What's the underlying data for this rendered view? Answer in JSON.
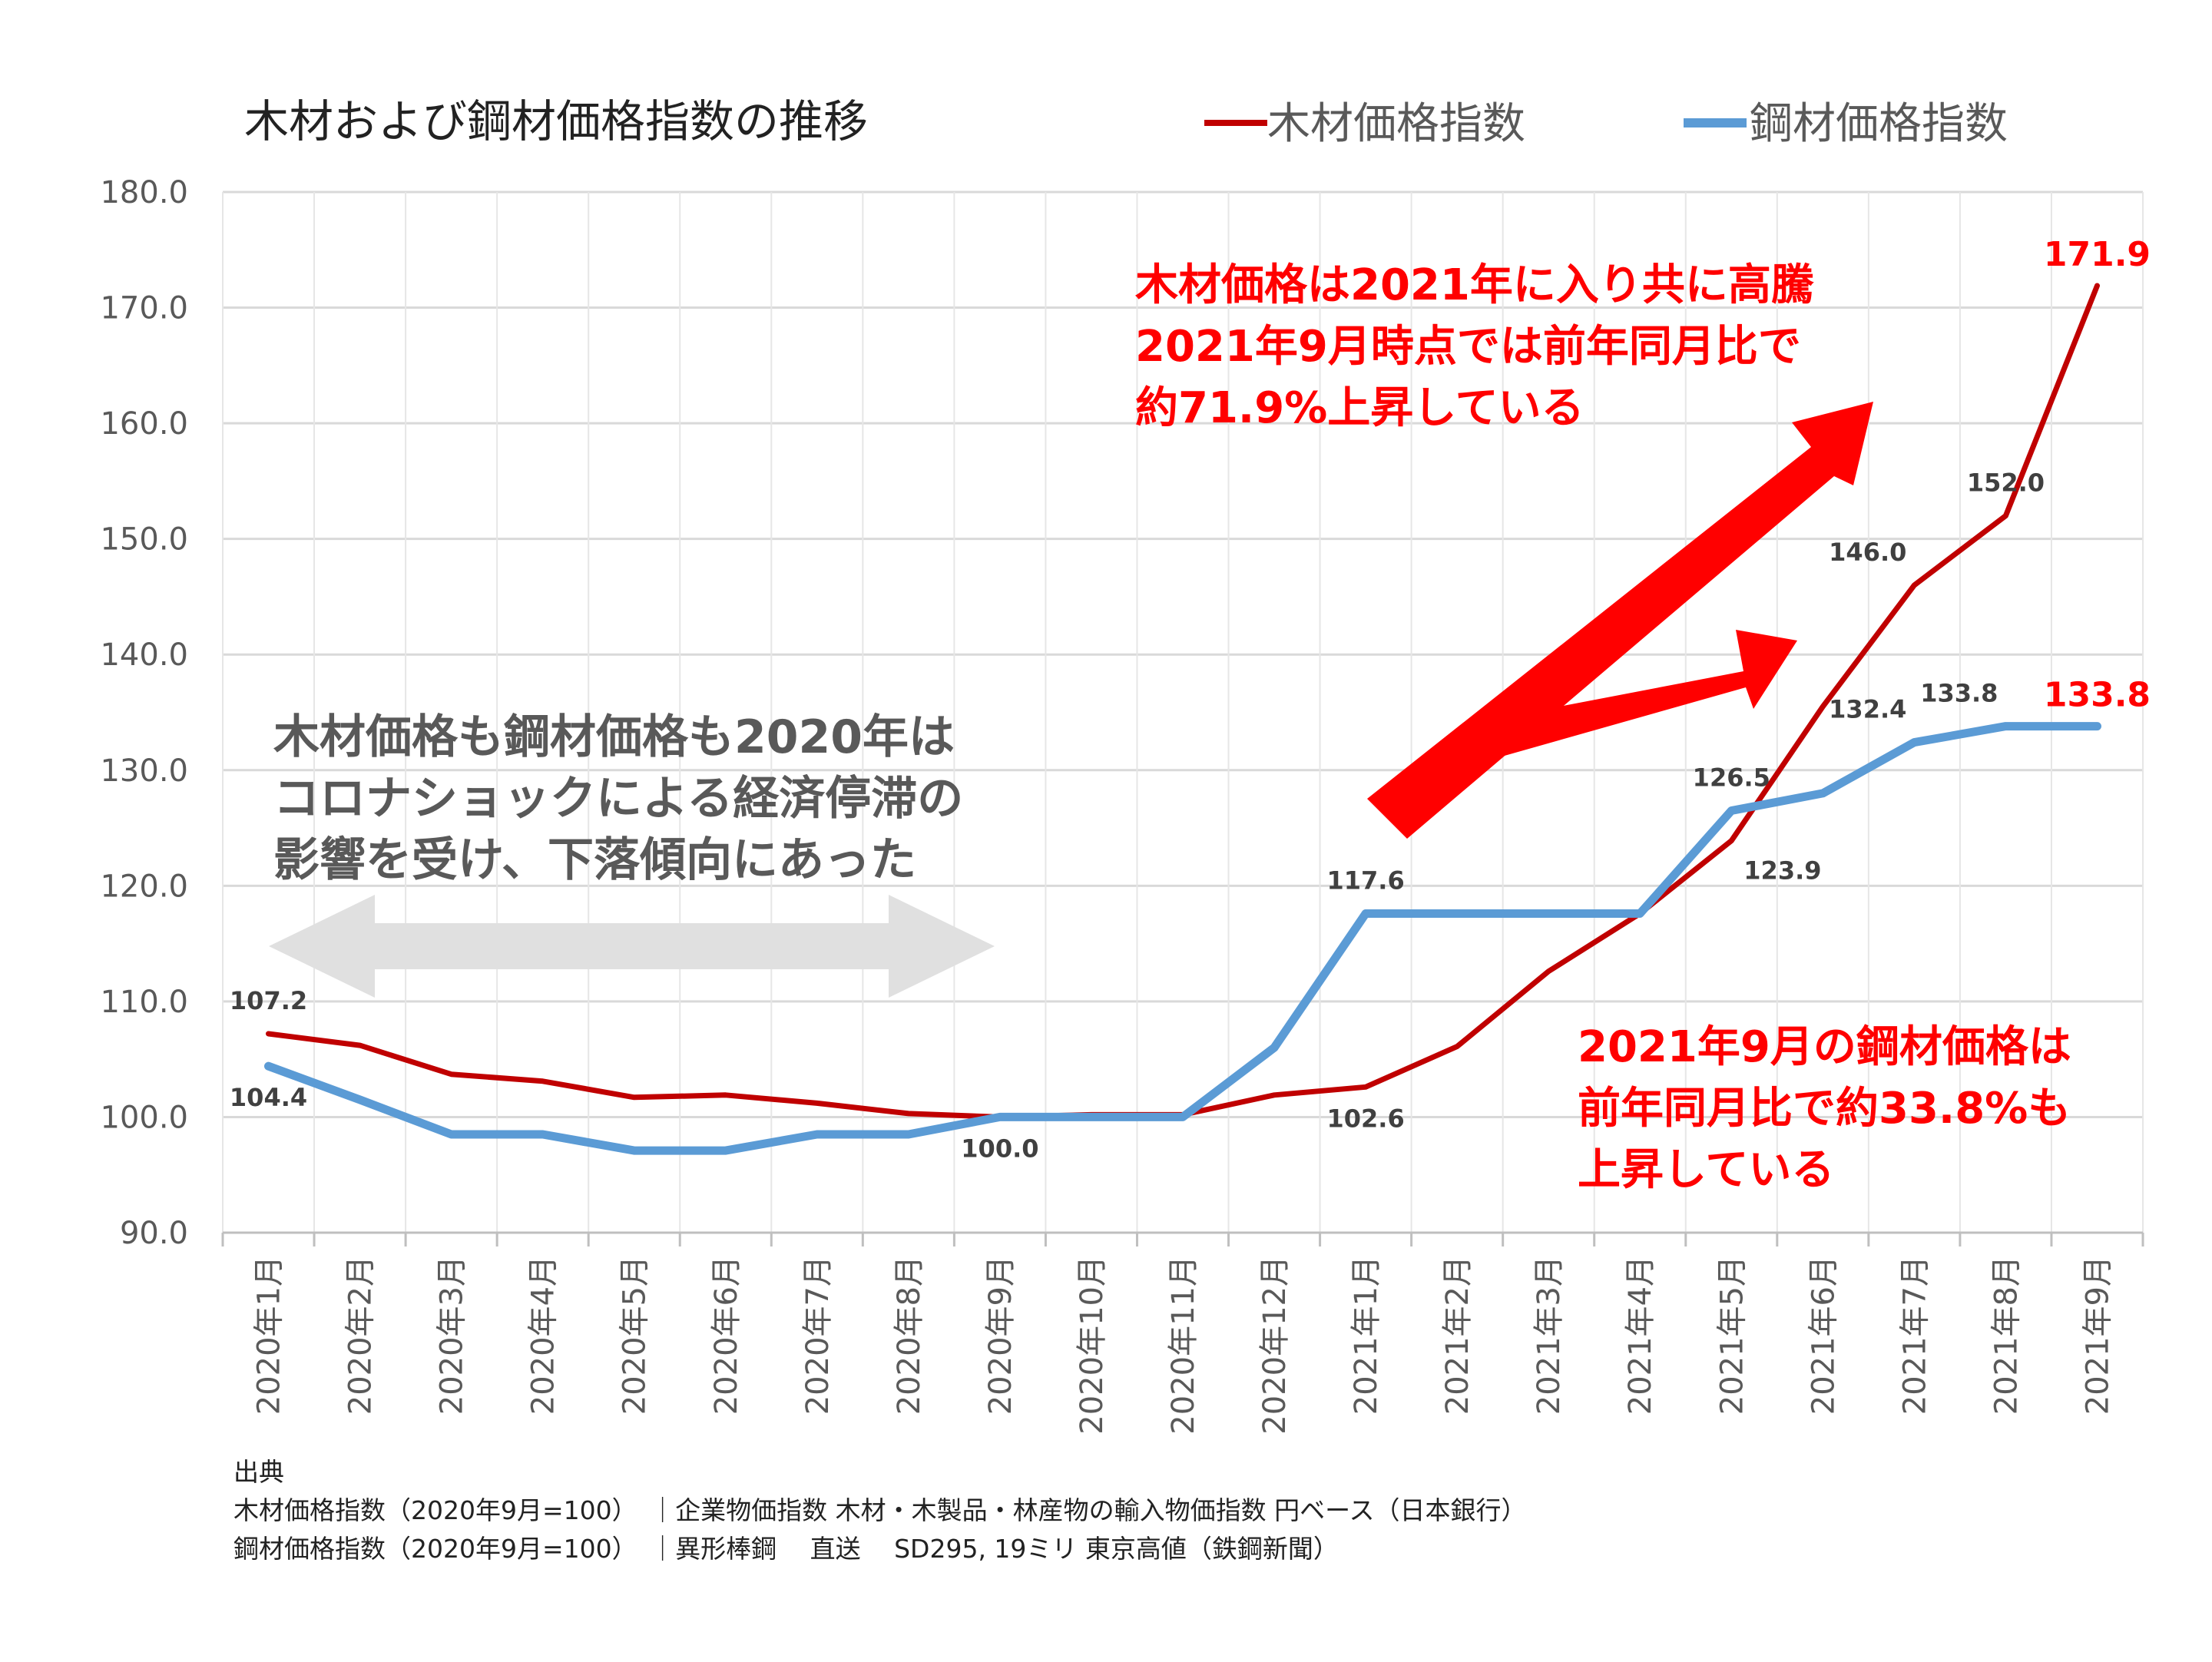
{
  "chart_data": {
    "type": "line",
    "title": "木材および鋼材価格指数の推移",
    "categories": [
      "2020年1月",
      "2020年2月",
      "2020年3月",
      "2020年4月",
      "2020年5月",
      "2020年6月",
      "2020年7月",
      "2020年8月",
      "2020年9月",
      "2020年10月",
      "2020年11月",
      "2020年12月",
      "2021年1月",
      "2021年2月",
      "2021年3月",
      "2021年4月",
      "2021年5月",
      "2021年6月",
      "2021年7月",
      "2021年8月",
      "2021年9月"
    ],
    "ylim": [
      90,
      180
    ],
    "yticks": [
      "90.0",
      "100.0",
      "110.0",
      "120.0",
      "130.0",
      "140.0",
      "150.0",
      "160.0",
      "170.0",
      "180.0"
    ],
    "grid": true,
    "legend_position": "top-right",
    "series": [
      {
        "name": "木材価格指数",
        "color": "#c00000",
        "values": [
          107.2,
          106.2,
          103.7,
          103.1,
          101.7,
          101.9,
          101.2,
          100.3,
          100.0,
          100.2,
          100.2,
          101.9,
          102.6,
          106.1,
          112.6,
          117.6,
          123.9,
          135.5,
          146.0,
          152.0,
          171.9
        ]
      },
      {
        "name": "鋼材価格指数",
        "color": "#5b9bd5",
        "values": [
          104.4,
          101.5,
          98.5,
          98.5,
          97.1,
          97.1,
          98.5,
          98.5,
          100.0,
          100.0,
          100.0,
          106.0,
          117.6,
          117.6,
          117.6,
          117.6,
          126.5,
          128.0,
          132.4,
          133.8,
          133.8
        ]
      }
    ],
    "data_labels": [
      {
        "text": "107.2",
        "series": 0,
        "index": 0,
        "pos": "above"
      },
      {
        "text": "104.4",
        "series": 1,
        "index": 0,
        "pos": "below"
      },
      {
        "text": "100.0",
        "series": 1,
        "index": 8,
        "pos": "below"
      },
      {
        "text": "117.6",
        "series": 1,
        "index": 12,
        "pos": "above"
      },
      {
        "text": "102.6",
        "series": 0,
        "index": 12,
        "pos": "below"
      },
      {
        "text": "123.9",
        "series": 0,
        "index": 16,
        "pos": "below-right"
      },
      {
        "text": "126.5",
        "series": 1,
        "index": 16,
        "pos": "above"
      },
      {
        "text": "146.0",
        "series": 0,
        "index": 18,
        "pos": "above-left"
      },
      {
        "text": "132.4",
        "series": 1,
        "index": 18,
        "pos": "above-left"
      },
      {
        "text": "152.0",
        "series": 0,
        "index": 19,
        "pos": "above"
      },
      {
        "text": "133.8",
        "series": 1,
        "index": 19,
        "pos": "above-left"
      }
    ],
    "highlight_labels": [
      {
        "text": "171.9",
        "series": 0,
        "index": 20
      },
      {
        "text": "133.8",
        "series": 1,
        "index": 20
      }
    ],
    "annotations": {
      "wood_note": [
        "木材価格は2021年に入り共に高騰",
        "2021年9月時点では前年同月比で",
        "約71.9%上昇している"
      ],
      "steel_note": [
        "2021年9月の鋼材価格は",
        "前年同月比で約33.8%も",
        "上昇している"
      ],
      "covid_note": [
        "木材価格も鋼材価格も2020年は",
        "コロナショックによる経済停滞の",
        "影響を受け、下落傾向にあった"
      ]
    }
  },
  "source": {
    "heading": "出典",
    "lines": [
      "木材価格指数（2020年9月=100）　｜企業物価指数  木材・木製品・林産物の輸入物価指数  円ベース（日本銀行）",
      "鋼材価格指数（2020年9月=100）　｜異形棒鋼　 直送　 SD295, 19ミリ 東京高値（鉄鋼新聞）"
    ]
  }
}
